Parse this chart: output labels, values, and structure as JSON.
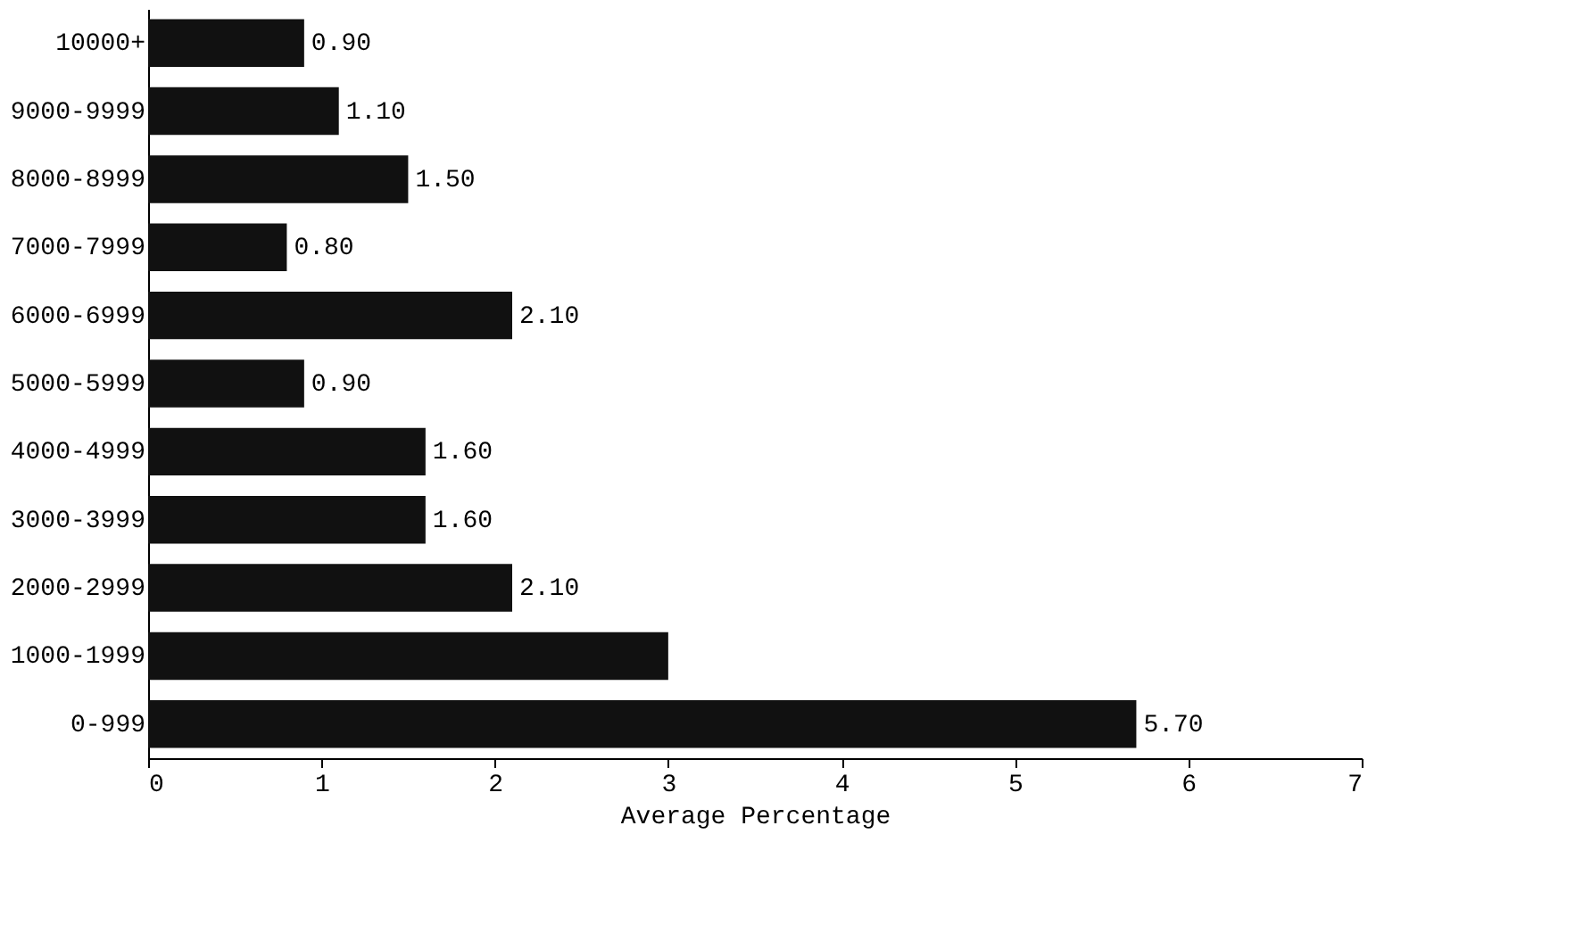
{
  "chart_data": {
    "type": "bar",
    "orientation": "horizontal",
    "xlabel": "Average Percentage",
    "categories": [
      "10000+",
      "9000-9999",
      "8000-8999",
      "7000-7999",
      "6000-6999",
      "5000-5999",
      "4000-4999",
      "3000-3999",
      "2000-2999",
      "1000-1999",
      "0-999"
    ],
    "values": [
      0.9,
      1.1,
      1.5,
      0.8,
      2.1,
      0.9,
      1.6,
      1.6,
      2.1,
      3.0,
      5.7
    ],
    "value_labels": [
      "0.90",
      "1.10",
      "1.50",
      "0.80",
      "2.10",
      "0.90",
      "1.60",
      "1.60",
      "2.10",
      null,
      "5.70"
    ],
    "color": "#111111",
    "xlim": [
      0,
      7
    ],
    "xticks": [
      0,
      1,
      2,
      3,
      4,
      5,
      6,
      7
    ],
    "grid": false
  }
}
